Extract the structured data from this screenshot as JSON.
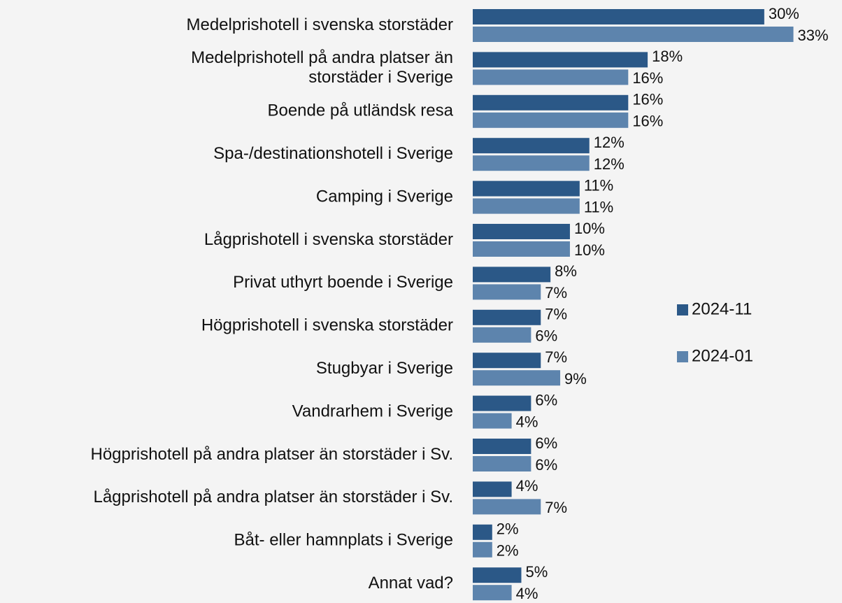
{
  "chart_data": {
    "type": "barh",
    "categories": [
      "Medelprishotell i svenska storstäder",
      "Medelprishotell på andra platser än\nstorstäder i Sverige",
      "Boende på utländsk resa",
      "Spa-/destinationshotell i Sverige",
      "Camping i Sverige",
      "Lågprishotell i svenska storstäder",
      "Privat uthyrt boende i Sverige",
      "Högprishotell i svenska storstäder",
      "Stugbyar i Sverige",
      "Vandrarhem i Sverige",
      "Högprishotell på andra platser än storstäder i Sv.",
      "Lågprishotell på andra platser än storstäder i Sv.",
      "Båt- eller hamnplats i Sverige",
      "Annat vad?"
    ],
    "series": [
      {
        "name": "2024-11",
        "color": "#2b5887",
        "values": [
          30,
          18,
          16,
          12,
          11,
          10,
          8,
          7,
          7,
          6,
          6,
          4,
          2,
          5
        ],
        "value_labels": [
          "30%",
          "18%",
          "16%",
          "12%",
          "11%",
          "10%",
          "8%",
          "7%",
          "7%",
          "6%",
          "6%",
          "4%",
          "2%",
          "5%"
        ]
      },
      {
        "name": "2024-01",
        "color": "#5d84ad",
        "values": [
          33,
          16,
          16,
          12,
          11,
          10,
          7,
          6,
          9,
          4,
          6,
          7,
          2,
          4
        ],
        "value_labels": [
          "33%",
          "16%",
          "16%",
          "12%",
          "11%",
          "10%",
          "7%",
          "6%",
          "9%",
          "4%",
          "6%",
          "7%",
          "2%",
          "4%"
        ]
      }
    ],
    "xlim": [
      0,
      38
    ],
    "legend": "right"
  }
}
